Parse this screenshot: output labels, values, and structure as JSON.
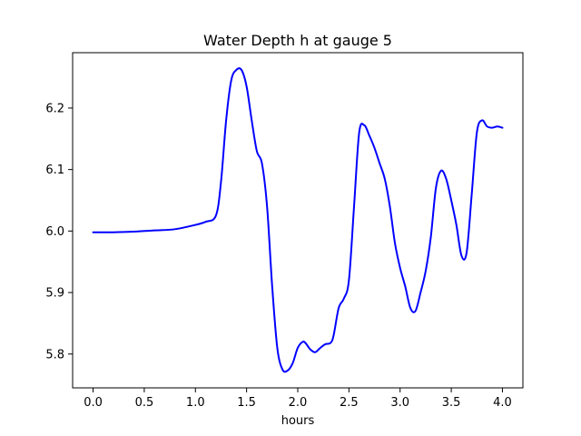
{
  "chart_data": {
    "type": "line",
    "title": "Water Depth h at gauge 5",
    "xlabel": "hours",
    "ylabel": "",
    "xlim": [
      -0.2,
      4.2
    ],
    "ylim": [
      5.745,
      6.29
    ],
    "xticks": [
      0.0,
      0.5,
      1.0,
      1.5,
      2.0,
      2.5,
      3.0,
      3.5,
      4.0
    ],
    "xtick_labels": [
      "0.0",
      "0.5",
      "1.0",
      "1.5",
      "2.0",
      "2.5",
      "3.0",
      "3.5",
      "4.0"
    ],
    "yticks": [
      5.8,
      5.9,
      6.0,
      6.1,
      6.2
    ],
    "ytick_labels": [
      "5.8",
      "5.9",
      "6.0",
      "6.1",
      "6.2"
    ],
    "grid": false,
    "series": [
      {
        "color": "#0000ff",
        "x": [
          0.0,
          0.2,
          0.4,
          0.6,
          0.8,
          1.0,
          1.1,
          1.2,
          1.25,
          1.3,
          1.35,
          1.4,
          1.45,
          1.5,
          1.55,
          1.6,
          1.65,
          1.7,
          1.75,
          1.8,
          1.85,
          1.9,
          1.95,
          2.0,
          2.05,
          2.08,
          2.12,
          2.17,
          2.22,
          2.27,
          2.32,
          2.35,
          2.4,
          2.45,
          2.5,
          2.55,
          2.6,
          2.65,
          2.7,
          2.75,
          2.8,
          2.85,
          2.9,
          2.95,
          3.0,
          3.05,
          3.1,
          3.15,
          3.2,
          3.25,
          3.3,
          3.35,
          3.4,
          3.45,
          3.5,
          3.55,
          3.6,
          3.65,
          3.7,
          3.75,
          3.8,
          3.85,
          3.9,
          3.95,
          4.0
        ],
        "y": [
          5.998,
          5.998,
          5.999,
          6.001,
          6.003,
          6.01,
          6.015,
          6.025,
          6.08,
          6.18,
          6.245,
          6.262,
          6.262,
          6.235,
          6.18,
          6.13,
          6.11,
          6.04,
          5.91,
          5.81,
          5.775,
          5.773,
          5.785,
          5.81,
          5.82,
          5.817,
          5.808,
          5.803,
          5.81,
          5.816,
          5.818,
          5.83,
          5.875,
          5.89,
          5.92,
          6.04,
          6.16,
          6.172,
          6.155,
          6.135,
          6.11,
          6.085,
          6.04,
          5.98,
          5.94,
          5.91,
          5.875,
          5.87,
          5.9,
          5.935,
          5.99,
          6.07,
          6.098,
          6.085,
          6.05,
          6.01,
          5.96,
          5.965,
          6.06,
          6.16,
          6.18,
          6.17,
          6.168,
          6.17,
          6.168
        ]
      }
    ]
  }
}
